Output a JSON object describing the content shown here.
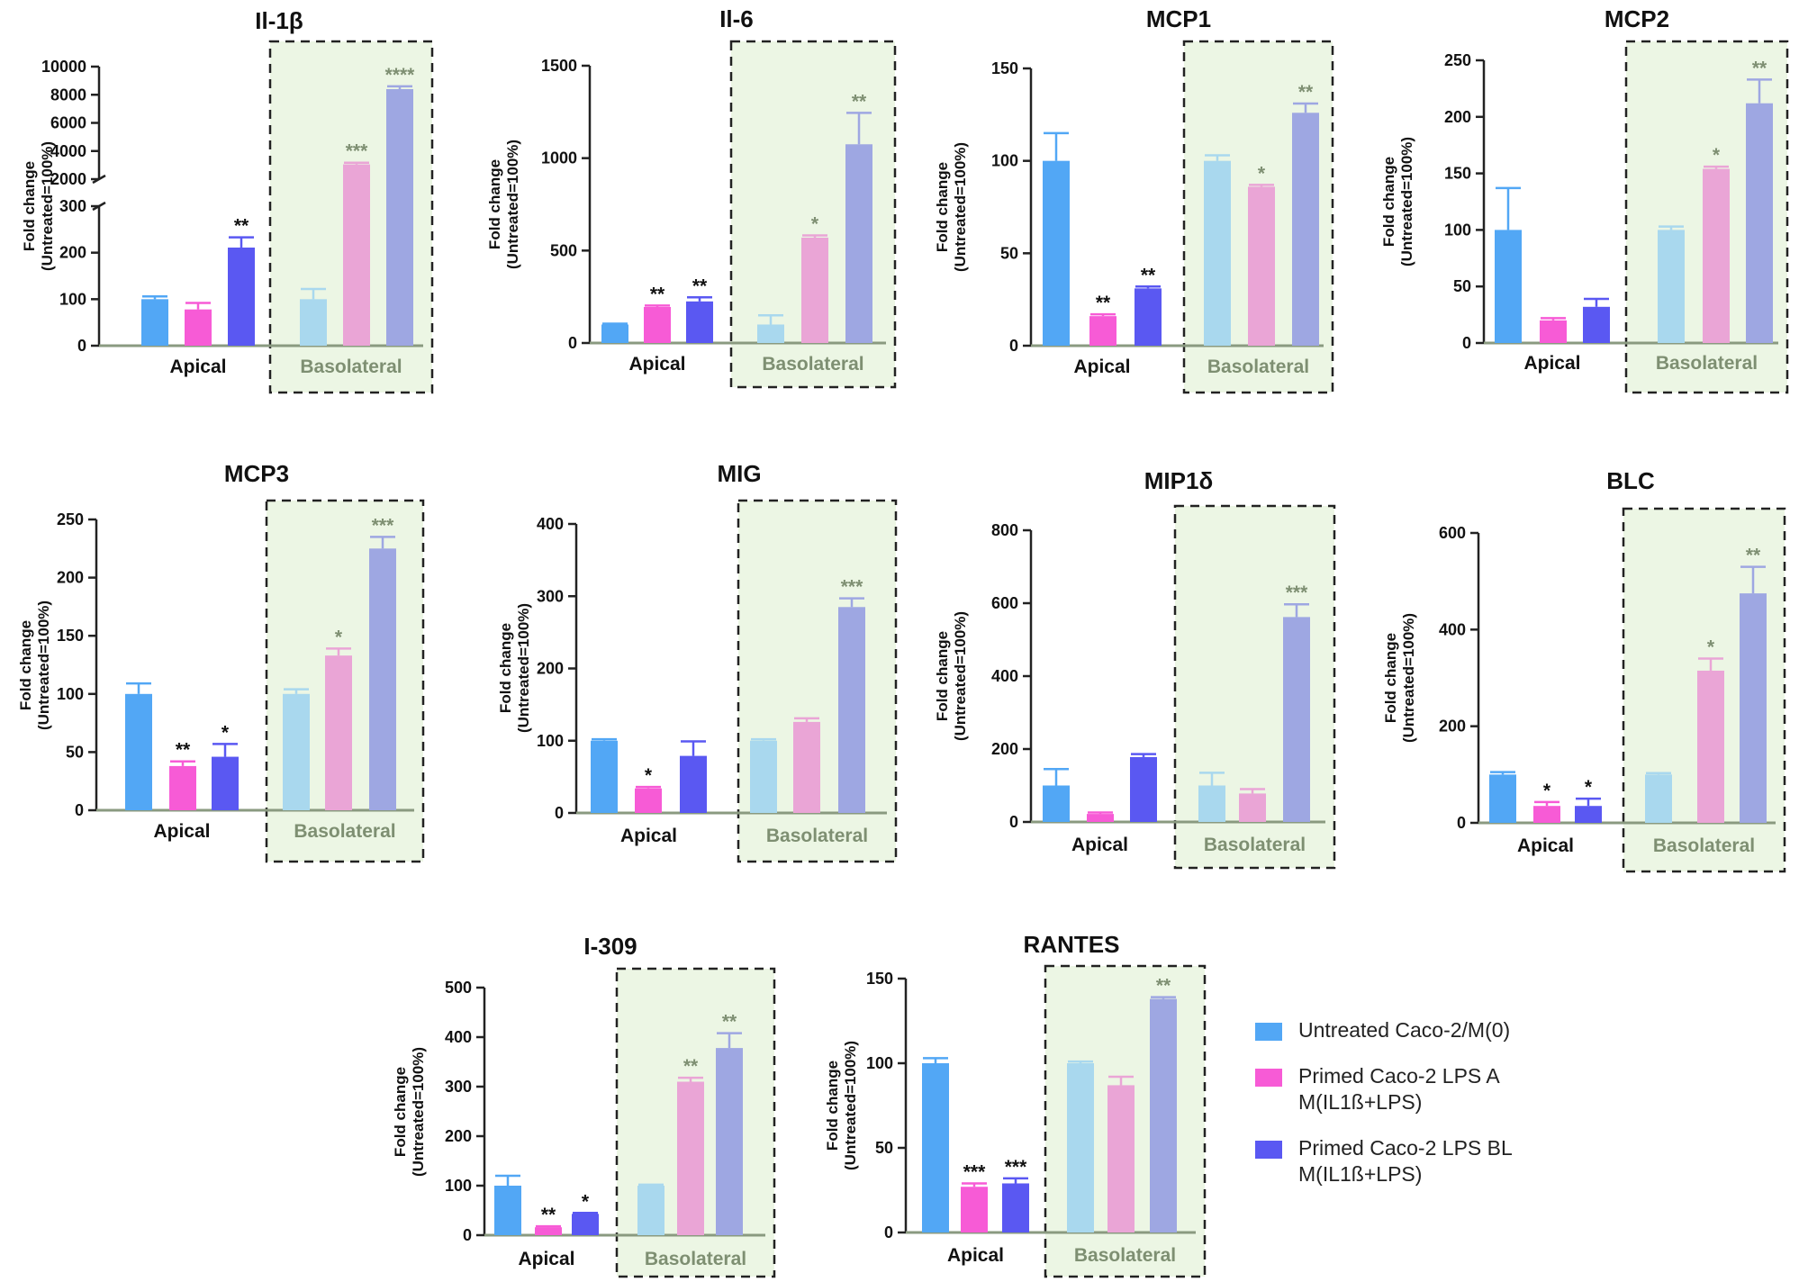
{
  "colors": {
    "apical": [
      "#52a7f5",
      "#f75bd6",
      "#5a58f2"
    ],
    "basolateral": [
      "#a9d8ee",
      "#eaa5d6",
      "#9ea7e2"
    ],
    "basolateral_bg": "#ecf6e4",
    "axis": "#8a9a80",
    "star_apical": "#111111",
    "star_basolateral": "#7e8f72",
    "group_apical": "#111111",
    "group_basolateral": "#7e8f72"
  },
  "legend": [
    {
      "label": "Untreated Caco-2/M(0)",
      "color": "#52a7f5"
    },
    {
      "label": "Primed Caco-2 LPS A\nM(IL1ß+LPS)",
      "color": "#f75bd6"
    },
    {
      "label": "Primed Caco-2 LPS BL\nM(IL1ß+LPS)",
      "color": "#5a58f2"
    }
  ],
  "chart_data": [
    {
      "type": "bar",
      "title": "Il-1β",
      "ylabel": [
        "Fold change",
        "(Untreated=100%)"
      ],
      "groups": [
        "Apical",
        "Basolateral"
      ],
      "series_names": [
        "Untreated Caco-2/M(0)",
        "Primed Caco-2 LPS A M(IL1ß+LPS)",
        "Primed Caco-2 LPS BL M(IL1ß+LPS)"
      ],
      "broken_axis": true,
      "ticks_low": [
        "0",
        "100",
        "200",
        "300"
      ],
      "ticks_high": [
        "2000",
        "4000",
        "6000",
        "8000",
        "10000"
      ],
      "apical": {
        "values": [
          100,
          78,
          211
        ],
        "errors": [
          6,
          14,
          22
        ],
        "stars": [
          "",
          "",
          "**"
        ]
      },
      "basolateral": {
        "values": [
          100,
          3050,
          8400
        ],
        "errors": [
          22,
          120,
          200
        ],
        "stars": [
          "",
          "***",
          "****"
        ]
      }
    },
    {
      "type": "bar",
      "title": "Il-6",
      "ylabel": [
        "Fold change",
        "(Untreated=100%)"
      ],
      "groups": [
        "Apical",
        "Basolateral"
      ],
      "ylim": [
        0,
        1500
      ],
      "yticks": [
        "0",
        "500",
        "1000",
        "1500"
      ],
      "apical": {
        "values": [
          100,
          195,
          225
        ],
        "errors": [
          5,
          8,
          22
        ],
        "stars": [
          "",
          "**",
          "**"
        ]
      },
      "basolateral": {
        "values": [
          100,
          570,
          1075
        ],
        "errors": [
          50,
          12,
          170
        ],
        "stars": [
          "",
          "*",
          "**"
        ]
      }
    },
    {
      "type": "bar",
      "title": "MCP1",
      "ylabel": [
        "Fold change",
        "(Untreated=100%)"
      ],
      "groups": [
        "Apical",
        "Basolateral"
      ],
      "ylim": [
        0,
        150
      ],
      "yticks": [
        "0",
        "50",
        "100",
        "150"
      ],
      "apical": {
        "values": [
          100,
          16,
          31
        ],
        "errors": [
          15,
          1,
          1
        ],
        "stars": [
          "",
          "**",
          "**"
        ]
      },
      "basolateral": {
        "values": [
          100,
          86,
          126
        ],
        "errors": [
          3,
          1,
          5
        ],
        "stars": [
          "",
          "*",
          "**"
        ]
      }
    },
    {
      "type": "bar",
      "title": "MCP2",
      "ylabel": [
        "Fold change",
        "(Untreated=100%)"
      ],
      "groups": [
        "Apical",
        "Basolateral"
      ],
      "ylim": [
        0,
        250
      ],
      "yticks": [
        "0",
        "50",
        "100",
        "150",
        "200",
        "250"
      ],
      "apical": {
        "values": [
          100,
          20,
          32
        ],
        "errors": [
          37,
          2,
          7
        ],
        "stars": [
          "",
          "",
          ""
        ]
      },
      "basolateral": {
        "values": [
          100,
          154,
          212
        ],
        "errors": [
          3,
          2,
          21
        ],
        "stars": [
          "",
          "*",
          "**"
        ]
      }
    },
    {
      "type": "bar",
      "title": "MCP3",
      "ylabel": [
        "Fold change",
        "(Untreated=100%)"
      ],
      "groups": [
        "Apical",
        "Basolateral"
      ],
      "ylim": [
        0,
        250
      ],
      "yticks": [
        "0",
        "50",
        "100",
        "150",
        "200",
        "250"
      ],
      "apical": {
        "values": [
          100,
          38,
          46
        ],
        "errors": [
          9,
          4,
          11
        ],
        "stars": [
          "",
          "**",
          "*"
        ]
      },
      "basolateral": {
        "values": [
          100,
          133,
          225
        ],
        "errors": [
          4,
          6,
          10
        ],
        "stars": [
          "",
          "*",
          "***"
        ]
      }
    },
    {
      "type": "bar",
      "title": "MIG",
      "ylabel": [
        "Fold change",
        "(Untreated=100%)"
      ],
      "groups": [
        "Apical",
        "Basolateral"
      ],
      "ylim": [
        0,
        400
      ],
      "yticks": [
        "0",
        "100",
        "200",
        "300",
        "400"
      ],
      "apical": {
        "values": [
          100,
          34,
          79
        ],
        "errors": [
          2,
          2,
          20
        ],
        "stars": [
          "",
          "*",
          ""
        ]
      },
      "basolateral": {
        "values": [
          100,
          126,
          285
        ],
        "errors": [
          2,
          5,
          12
        ],
        "stars": [
          "",
          "",
          "***"
        ]
      }
    },
    {
      "type": "bar",
      "title": "MIP1δ",
      "ylabel": [
        "Fold change",
        "(Untreated=100%)"
      ],
      "groups": [
        "Apical",
        "Basolateral"
      ],
      "ylim": [
        0,
        800
      ],
      "yticks": [
        "0",
        "200",
        "400",
        "600",
        "800"
      ],
      "apical": {
        "values": [
          100,
          22,
          178
        ],
        "errors": [
          45,
          4,
          8
        ],
        "stars": [
          "",
          "",
          ""
        ]
      },
      "basolateral": {
        "values": [
          100,
          78,
          562
        ],
        "errors": [
          35,
          12,
          35
        ],
        "stars": [
          "",
          "",
          "***"
        ]
      }
    },
    {
      "type": "bar",
      "title": "BLC",
      "ylabel": [
        "Fold change",
        "(Untreated=100%)"
      ],
      "groups": [
        "Apical",
        "Basolateral"
      ],
      "ylim": [
        0,
        600
      ],
      "yticks": [
        "0",
        "200",
        "400",
        "600"
      ],
      "apical": {
        "values": [
          100,
          35,
          35
        ],
        "errors": [
          5,
          8,
          15
        ],
        "stars": [
          "",
          "*",
          "*"
        ]
      },
      "basolateral": {
        "values": [
          100,
          315,
          475
        ],
        "errors": [
          3,
          25,
          55
        ],
        "stars": [
          "",
          "*",
          "**"
        ]
      }
    },
    {
      "type": "bar",
      "title": "I-309",
      "ylabel": [
        "Fold change",
        "(Untreated=100%)"
      ],
      "groups": [
        "Apical",
        "Basolateral"
      ],
      "ylim": [
        0,
        500
      ],
      "yticks": [
        "0",
        "100",
        "200",
        "300",
        "400",
        "500"
      ],
      "apical": {
        "values": [
          100,
          16,
          43
        ],
        "errors": [
          20,
          2,
          2
        ],
        "stars": [
          "",
          "**",
          "*"
        ]
      },
      "basolateral": {
        "values": [
          100,
          310,
          378
        ],
        "errors": [
          2,
          8,
          30
        ],
        "stars": [
          "",
          "**",
          "**"
        ]
      }
    },
    {
      "type": "bar",
      "title": "RANTES",
      "ylabel": [
        "Fold change",
        "(Untreated=100%)"
      ],
      "groups": [
        "Apical",
        "Basolateral"
      ],
      "ylim": [
        0,
        150
      ],
      "yticks": [
        "0",
        "50",
        "100",
        "150"
      ],
      "apical": {
        "values": [
          100,
          27,
          29
        ],
        "errors": [
          3,
          2,
          3
        ],
        "stars": [
          "",
          "***",
          "***"
        ]
      },
      "basolateral": {
        "values": [
          100,
          87,
          138
        ],
        "errors": [
          1,
          5,
          1
        ],
        "stars": [
          "",
          "",
          "**"
        ]
      }
    }
  ]
}
